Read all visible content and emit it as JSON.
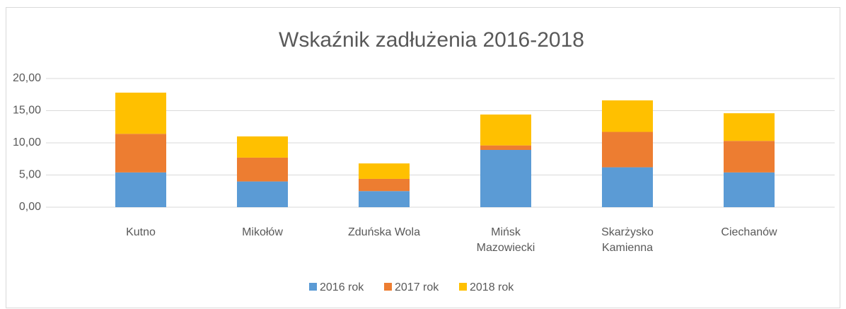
{
  "chart_data": {
    "type": "bar",
    "stacked": true,
    "title": "Wskaźnik zadłużenia 2016-2018",
    "categories": [
      "Kutno",
      "Mikołów",
      "Zduńska Wola",
      "Mińsk Mazowiecki",
      "Skarżysko Kamienna",
      "Ciechanów"
    ],
    "series": [
      {
        "name": "2016 rok",
        "color": "#5b9bd5",
        "values": [
          5.4,
          4.0,
          2.5,
          8.9,
          6.2,
          5.4
        ]
      },
      {
        "name": "2017 rok",
        "color": "#ed7d31",
        "values": [
          6.0,
          3.7,
          1.9,
          0.7,
          5.5,
          4.9
        ]
      },
      {
        "name": "2018 rok",
        "color": "#ffc000",
        "values": [
          6.4,
          3.3,
          2.4,
          4.8,
          4.9,
          4.3
        ]
      }
    ],
    "ylim": [
      0,
      20
    ],
    "yticks": [
      {
        "value": 0,
        "label": "0,00"
      },
      {
        "value": 5,
        "label": "5,00"
      },
      {
        "value": 10,
        "label": "10,00"
      },
      {
        "value": 15,
        "label": "15,00"
      },
      {
        "value": 20,
        "label": "20,00"
      }
    ],
    "grid": true,
    "legend": "bottom"
  }
}
